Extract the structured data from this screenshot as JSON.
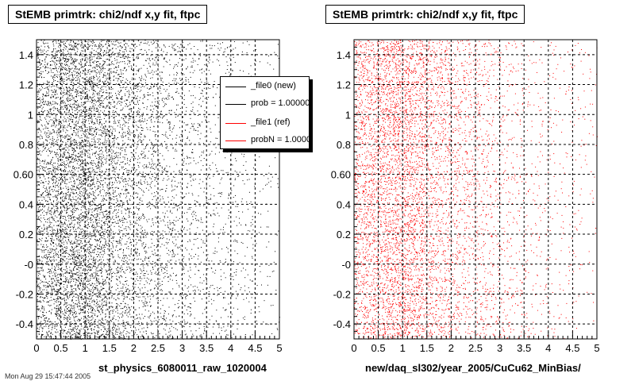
{
  "footer_text": "Mon Aug 29 15:47:44 2005",
  "legend": {
    "entries": [
      {
        "label": "_file0 (new)",
        "color": "#000000"
      },
      {
        "label": "prob = 1.000000",
        "color": "#000000"
      },
      {
        "label": "_file1 (ref)",
        "color": "#ff0000"
      },
      {
        "label": "probN = 1.000000",
        "color": "#ff0000"
      }
    ]
  },
  "chart_data": [
    {
      "type": "scatter",
      "title": "StEMB primtrk: chi2/ndf x,y fit, ftpc",
      "xlabel": "st_physics_6080011_raw_1020004",
      "ylabel": "",
      "xlim": [
        0,
        5
      ],
      "ylim": [
        -0.5,
        1.5
      ],
      "x_ticks": [
        "0",
        "0.5",
        "1",
        "1.5",
        "2",
        "2.5",
        "3",
        "3.5",
        "4",
        "4.5",
        "5"
      ],
      "y_ticks": [
        "-0.4",
        "-0.2",
        "-0",
        "0.2",
        "0.4",
        "0.60",
        "0.8",
        "1",
        "1.2",
        "1.4"
      ],
      "grid": true,
      "legend_position": "top-right",
      "color": "#000000",
      "series": [
        {
          "n_points": 9000,
          "x_peak": 0.9,
          "density": "decreasing with x, sparse above x=3.5"
        }
      ]
    },
    {
      "type": "scatter",
      "title": "StEMB primtrk: chi2/ndf x,y fit, ftpc",
      "xlabel": "new/daq_sl302/year_2005/CuCu62_MinBias/",
      "ylabel": "",
      "xlim": [
        0,
        5
      ],
      "ylim": [
        -0.5,
        1.5
      ],
      "x_ticks": [
        "0",
        "0.5",
        "1",
        "1.5",
        "2",
        "2.5",
        "3",
        "3.5",
        "4",
        "4.5",
        "5"
      ],
      "y_ticks": [
        "-0.4",
        "-0.2",
        "-0",
        "0.2",
        "0.4",
        "0.60",
        "0.8",
        "1",
        "1.2",
        "1.4"
      ],
      "grid": true,
      "color": "#ff0000",
      "series": [
        {
          "n_points": 6500,
          "x_peak": 0.9,
          "density": "decreasing with x, sparse above x=3.5"
        }
      ]
    }
  ]
}
